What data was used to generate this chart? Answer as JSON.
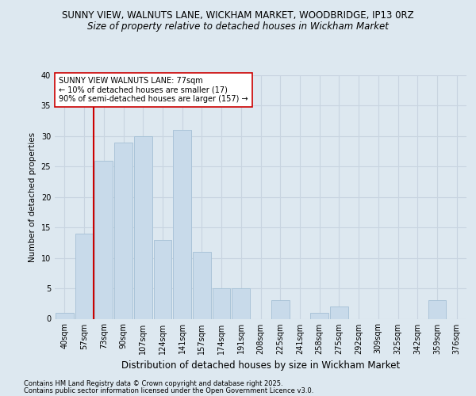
{
  "title1": "SUNNY VIEW, WALNUTS LANE, WICKHAM MARKET, WOODBRIDGE, IP13 0RZ",
  "title2": "Size of property relative to detached houses in Wickham Market",
  "xlabel": "Distribution of detached houses by size in Wickham Market",
  "ylabel": "Number of detached properties",
  "categories": [
    "40sqm",
    "57sqm",
    "73sqm",
    "90sqm",
    "107sqm",
    "124sqm",
    "141sqm",
    "157sqm",
    "174sqm",
    "191sqm",
    "208sqm",
    "225sqm",
    "241sqm",
    "258sqm",
    "275sqm",
    "292sqm",
    "309sqm",
    "325sqm",
    "342sqm",
    "359sqm",
    "376sqm"
  ],
  "values": [
    1,
    14,
    26,
    29,
    30,
    13,
    31,
    11,
    5,
    5,
    0,
    3,
    0,
    1,
    2,
    0,
    0,
    0,
    0,
    3,
    0
  ],
  "bar_color": "#c8daea",
  "bar_edge_color": "#aac4d8",
  "grid_color": "#c8d4e0",
  "bg_color": "#dde8f0",
  "vline_color": "#cc0000",
  "vline_x_idx": 2,
  "annotation_text": "SUNNY VIEW WALNUTS LANE: 77sqm\n← 10% of detached houses are smaller (17)\n90% of semi-detached houses are larger (157) →",
  "annotation_box_color": "#ffffff",
  "annotation_edge_color": "#cc0000",
  "ylim": [
    0,
    40
  ],
  "yticks": [
    0,
    5,
    10,
    15,
    20,
    25,
    30,
    35,
    40
  ],
  "footer1": "Contains HM Land Registry data © Crown copyright and database right 2025.",
  "footer2": "Contains public sector information licensed under the Open Government Licence v3.0.",
  "title1_fontsize": 8.5,
  "title2_fontsize": 8.5,
  "ylabel_fontsize": 7.5,
  "xlabel_fontsize": 8.5,
  "tick_fontsize": 7,
  "footer_fontsize": 6,
  "annot_fontsize": 7
}
